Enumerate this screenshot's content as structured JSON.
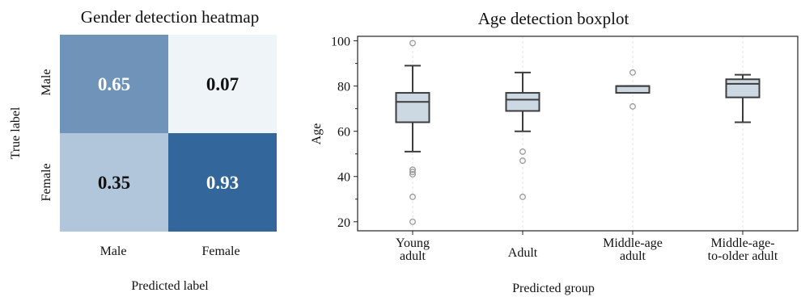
{
  "chart_data": [
    {
      "type": "heatmap",
      "title": "Gender detection heatmap",
      "xlabel": "Predicted label",
      "ylabel": "True label",
      "x_categories": [
        "Male",
        "Female"
      ],
      "y_categories": [
        "Male",
        "Female"
      ],
      "values": [
        [
          0.65,
          0.07
        ],
        [
          0.35,
          0.93
        ]
      ],
      "value_labels": [
        [
          "0.65",
          "0.07"
        ],
        [
          "0.35",
          "0.93"
        ]
      ],
      "colormap": {
        "low": "#eef4f8",
        "high": "#33669b"
      }
    },
    {
      "type": "boxplot",
      "title": "Age detection boxplot",
      "xlabel": "Predicted group",
      "ylabel": "Age",
      "ylim": [
        16,
        102
      ],
      "yticks": [
        20,
        40,
        60,
        80,
        100
      ],
      "grid": true,
      "categories": [
        [
          "Young",
          "adult"
        ],
        [
          "Adult"
        ],
        [
          "Middle-age",
          "adult"
        ],
        [
          "Middle-age-",
          "to-older adult"
        ]
      ],
      "boxes": [
        {
          "whisker_low": 51,
          "q1": 64,
          "median": 73,
          "q3": 77,
          "whisker_high": 89,
          "outliers": [
            99,
            43,
            42,
            41,
            31,
            20
          ]
        },
        {
          "whisker_low": 60,
          "q1": 69,
          "median": 74,
          "q3": 77,
          "whisker_high": 86,
          "outliers": [
            51,
            47,
            31
          ]
        },
        {
          "whisker_low": 77,
          "q1": 77,
          "median": 80,
          "q3": 80,
          "whisker_high": 80,
          "outliers": [
            86,
            71
          ]
        },
        {
          "whisker_low": 64,
          "q1": 75,
          "median": 81,
          "q3": 83,
          "whisker_high": 85,
          "outliers": []
        }
      ],
      "colors": {
        "box_fill": "#ccd9e3",
        "box_edge": "#3d3d3d",
        "outlier": "#9a9a9a",
        "grid": "#e3e3e3"
      }
    }
  ]
}
